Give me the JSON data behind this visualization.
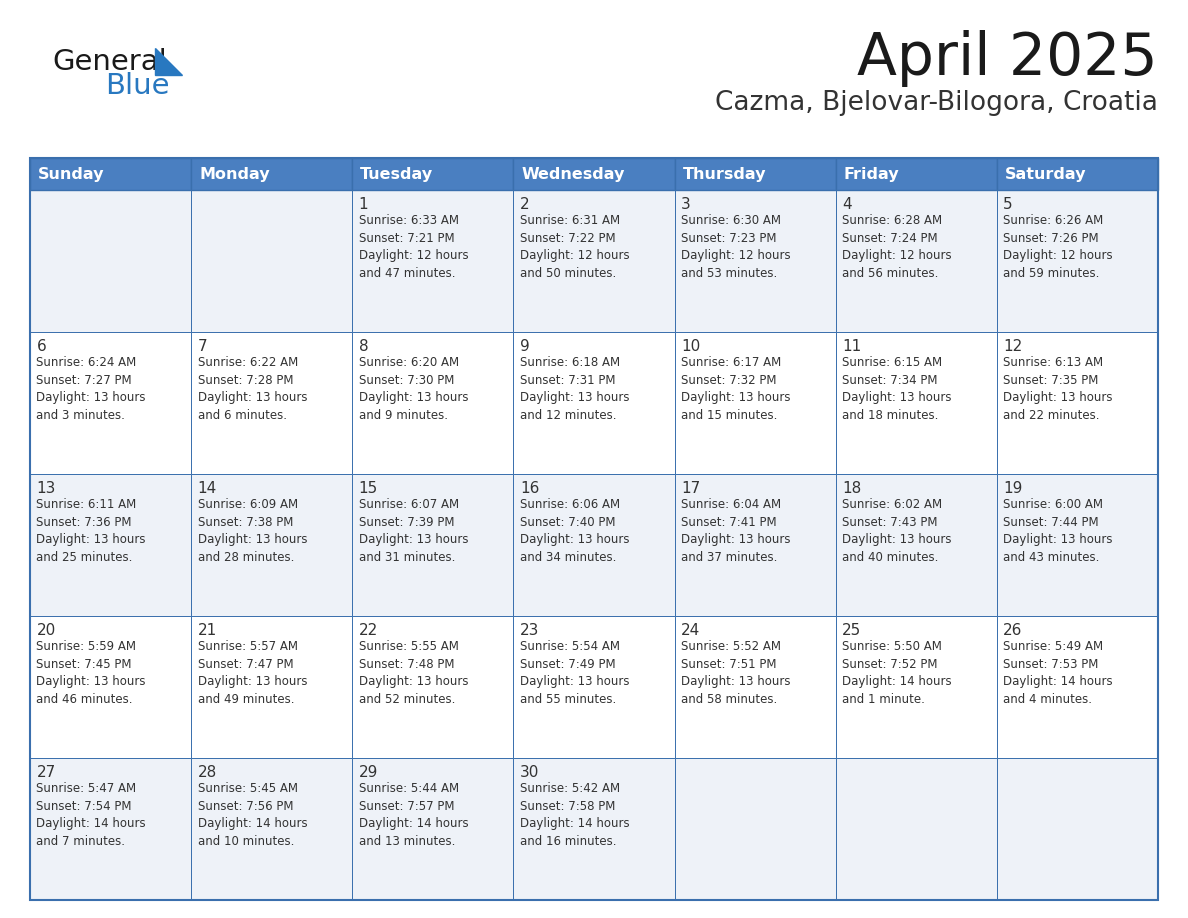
{
  "title": "April 2025",
  "subtitle": "Cazma, Bjelovar-Bilogora, Croatia",
  "days_of_week": [
    "Sunday",
    "Monday",
    "Tuesday",
    "Wednesday",
    "Thursday",
    "Friday",
    "Saturday"
  ],
  "header_bg": "#4a7fc1",
  "header_text": "#ffffff",
  "cell_bg_even": "#eef2f8",
  "cell_bg_odd": "#ffffff",
  "border_color": "#3a6fad",
  "text_color": "#333333",
  "title_color": "#1a1a1a",
  "subtitle_color": "#333333",
  "logo_general_color": "#1a1a1a",
  "logo_blue_color": "#2878c0",
  "calendar": [
    [
      {
        "day": "",
        "sunrise": "",
        "sunset": "",
        "daylight": ""
      },
      {
        "day": "",
        "sunrise": "",
        "sunset": "",
        "daylight": ""
      },
      {
        "day": "1",
        "sunrise": "Sunrise: 6:33 AM",
        "sunset": "Sunset: 7:21 PM",
        "daylight": "Daylight: 12 hours\nand 47 minutes."
      },
      {
        "day": "2",
        "sunrise": "Sunrise: 6:31 AM",
        "sunset": "Sunset: 7:22 PM",
        "daylight": "Daylight: 12 hours\nand 50 minutes."
      },
      {
        "day": "3",
        "sunrise": "Sunrise: 6:30 AM",
        "sunset": "Sunset: 7:23 PM",
        "daylight": "Daylight: 12 hours\nand 53 minutes."
      },
      {
        "day": "4",
        "sunrise": "Sunrise: 6:28 AM",
        "sunset": "Sunset: 7:24 PM",
        "daylight": "Daylight: 12 hours\nand 56 minutes."
      },
      {
        "day": "5",
        "sunrise": "Sunrise: 6:26 AM",
        "sunset": "Sunset: 7:26 PM",
        "daylight": "Daylight: 12 hours\nand 59 minutes."
      }
    ],
    [
      {
        "day": "6",
        "sunrise": "Sunrise: 6:24 AM",
        "sunset": "Sunset: 7:27 PM",
        "daylight": "Daylight: 13 hours\nand 3 minutes."
      },
      {
        "day": "7",
        "sunrise": "Sunrise: 6:22 AM",
        "sunset": "Sunset: 7:28 PM",
        "daylight": "Daylight: 13 hours\nand 6 minutes."
      },
      {
        "day": "8",
        "sunrise": "Sunrise: 6:20 AM",
        "sunset": "Sunset: 7:30 PM",
        "daylight": "Daylight: 13 hours\nand 9 minutes."
      },
      {
        "day": "9",
        "sunrise": "Sunrise: 6:18 AM",
        "sunset": "Sunset: 7:31 PM",
        "daylight": "Daylight: 13 hours\nand 12 minutes."
      },
      {
        "day": "10",
        "sunrise": "Sunrise: 6:17 AM",
        "sunset": "Sunset: 7:32 PM",
        "daylight": "Daylight: 13 hours\nand 15 minutes."
      },
      {
        "day": "11",
        "sunrise": "Sunrise: 6:15 AM",
        "sunset": "Sunset: 7:34 PM",
        "daylight": "Daylight: 13 hours\nand 18 minutes."
      },
      {
        "day": "12",
        "sunrise": "Sunrise: 6:13 AM",
        "sunset": "Sunset: 7:35 PM",
        "daylight": "Daylight: 13 hours\nand 22 minutes."
      }
    ],
    [
      {
        "day": "13",
        "sunrise": "Sunrise: 6:11 AM",
        "sunset": "Sunset: 7:36 PM",
        "daylight": "Daylight: 13 hours\nand 25 minutes."
      },
      {
        "day": "14",
        "sunrise": "Sunrise: 6:09 AM",
        "sunset": "Sunset: 7:38 PM",
        "daylight": "Daylight: 13 hours\nand 28 minutes."
      },
      {
        "day": "15",
        "sunrise": "Sunrise: 6:07 AM",
        "sunset": "Sunset: 7:39 PM",
        "daylight": "Daylight: 13 hours\nand 31 minutes."
      },
      {
        "day": "16",
        "sunrise": "Sunrise: 6:06 AM",
        "sunset": "Sunset: 7:40 PM",
        "daylight": "Daylight: 13 hours\nand 34 minutes."
      },
      {
        "day": "17",
        "sunrise": "Sunrise: 6:04 AM",
        "sunset": "Sunset: 7:41 PM",
        "daylight": "Daylight: 13 hours\nand 37 minutes."
      },
      {
        "day": "18",
        "sunrise": "Sunrise: 6:02 AM",
        "sunset": "Sunset: 7:43 PM",
        "daylight": "Daylight: 13 hours\nand 40 minutes."
      },
      {
        "day": "19",
        "sunrise": "Sunrise: 6:00 AM",
        "sunset": "Sunset: 7:44 PM",
        "daylight": "Daylight: 13 hours\nand 43 minutes."
      }
    ],
    [
      {
        "day": "20",
        "sunrise": "Sunrise: 5:59 AM",
        "sunset": "Sunset: 7:45 PM",
        "daylight": "Daylight: 13 hours\nand 46 minutes."
      },
      {
        "day": "21",
        "sunrise": "Sunrise: 5:57 AM",
        "sunset": "Sunset: 7:47 PM",
        "daylight": "Daylight: 13 hours\nand 49 minutes."
      },
      {
        "day": "22",
        "sunrise": "Sunrise: 5:55 AM",
        "sunset": "Sunset: 7:48 PM",
        "daylight": "Daylight: 13 hours\nand 52 minutes."
      },
      {
        "day": "23",
        "sunrise": "Sunrise: 5:54 AM",
        "sunset": "Sunset: 7:49 PM",
        "daylight": "Daylight: 13 hours\nand 55 minutes."
      },
      {
        "day": "24",
        "sunrise": "Sunrise: 5:52 AM",
        "sunset": "Sunset: 7:51 PM",
        "daylight": "Daylight: 13 hours\nand 58 minutes."
      },
      {
        "day": "25",
        "sunrise": "Sunrise: 5:50 AM",
        "sunset": "Sunset: 7:52 PM",
        "daylight": "Daylight: 14 hours\nand 1 minute."
      },
      {
        "day": "26",
        "sunrise": "Sunrise: 5:49 AM",
        "sunset": "Sunset: 7:53 PM",
        "daylight": "Daylight: 14 hours\nand 4 minutes."
      }
    ],
    [
      {
        "day": "27",
        "sunrise": "Sunrise: 5:47 AM",
        "sunset": "Sunset: 7:54 PM",
        "daylight": "Daylight: 14 hours\nand 7 minutes."
      },
      {
        "day": "28",
        "sunrise": "Sunrise: 5:45 AM",
        "sunset": "Sunset: 7:56 PM",
        "daylight": "Daylight: 14 hours\nand 10 minutes."
      },
      {
        "day": "29",
        "sunrise": "Sunrise: 5:44 AM",
        "sunset": "Sunset: 7:57 PM",
        "daylight": "Daylight: 14 hours\nand 13 minutes."
      },
      {
        "day": "30",
        "sunrise": "Sunrise: 5:42 AM",
        "sunset": "Sunset: 7:58 PM",
        "daylight": "Daylight: 14 hours\nand 16 minutes."
      },
      {
        "day": "",
        "sunrise": "",
        "sunset": "",
        "daylight": ""
      },
      {
        "day": "",
        "sunrise": "",
        "sunset": "",
        "daylight": ""
      },
      {
        "day": "",
        "sunrise": "",
        "sunset": "",
        "daylight": ""
      }
    ]
  ]
}
